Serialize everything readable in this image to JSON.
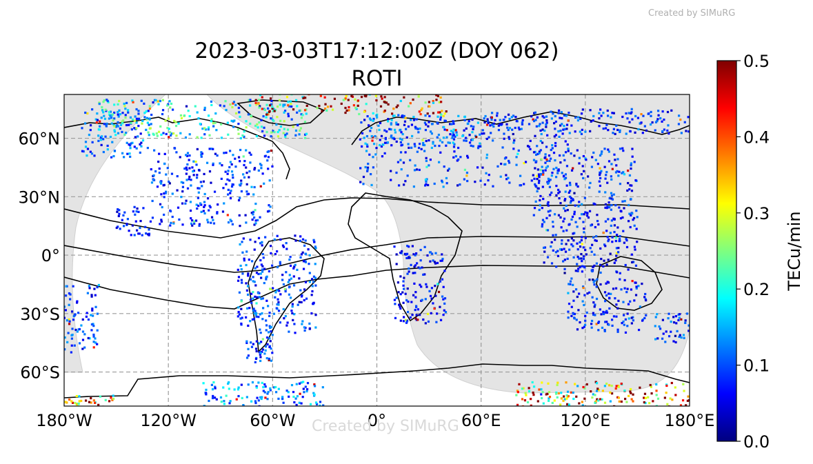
{
  "watermark_top": "Created by SIMuRG",
  "watermark_bottom": "Created by SIMuRG",
  "title_line1": "2023-03-03T17:12:00Z (DOY 062)",
  "title_line2": "ROTI",
  "map": {
    "projection": "plate-carree",
    "lon_range": [
      -180,
      180
    ],
    "lat_range": [
      -90,
      90
    ],
    "x_ticks": [
      {
        "value": -180,
        "label": "180°W"
      },
      {
        "value": -120,
        "label": "120°W"
      },
      {
        "value": -60,
        "label": "60°W"
      },
      {
        "value": 0,
        "label": "0°"
      },
      {
        "value": 60,
        "label": "60°E"
      },
      {
        "value": 120,
        "label": "120°E"
      },
      {
        "value": 180,
        "label": "180°E"
      }
    ],
    "y_ticks": [
      {
        "value": 60,
        "label": "60°N"
      },
      {
        "value": 30,
        "label": "30°N"
      },
      {
        "value": 0,
        "label": "0°"
      },
      {
        "value": -30,
        "label": "30°S"
      },
      {
        "value": -60,
        "label": "60°S"
      }
    ],
    "grid": true,
    "night_shading_color": "#e4e4e4",
    "coastline_color": "#000000",
    "marker": "small squares colored by ROTI value"
  },
  "colorbar": {
    "label": "TECu/min",
    "min": 0.0,
    "max": 0.5,
    "ticks": [
      {
        "value": 0.0,
        "label": "0.0"
      },
      {
        "value": 0.1,
        "label": "0.1"
      },
      {
        "value": 0.2,
        "label": "0.2"
      },
      {
        "value": 0.3,
        "label": "0.3"
      },
      {
        "value": 0.4,
        "label": "0.4"
      },
      {
        "value": 0.5,
        "label": "0.5"
      }
    ],
    "colormap": "jet",
    "colors": [
      "#00007f",
      "#0000ff",
      "#007fff",
      "#00ffff",
      "#7fff7f",
      "#ffff00",
      "#ff7f00",
      "#ff0000",
      "#7f0000"
    ]
  },
  "chart_data": {
    "type": "scatter",
    "xlabel": "",
    "ylabel": "",
    "xlim": [
      -180,
      180
    ],
    "ylim": [
      -90,
      90
    ],
    "value_range": [
      0,
      0.5
    ],
    "regions": [
      {
        "lon": [
          -170,
          -130
        ],
        "lat": [
          50,
          75
        ],
        "level": 0.12
      },
      {
        "lon": [
          -130,
          -60
        ],
        "lat": [
          15,
          55
        ],
        "level": 0.1
      },
      {
        "lon": [
          -160,
          -40
        ],
        "lat": [
          60,
          80
        ],
        "level": 0.2
      },
      {
        "lon": [
          -70,
          40
        ],
        "lat": [
          72,
          84
        ],
        "level": 0.45
      },
      {
        "lon": [
          -80,
          -35
        ],
        "lat": [
          -40,
          10
        ],
        "level": 0.1
      },
      {
        "lon": [
          -75,
          -60
        ],
        "lat": [
          -55,
          -40
        ],
        "level": 0.1
      },
      {
        "lon": [
          -10,
          110
        ],
        "lat": [
          35,
          70
        ],
        "level": 0.1
      },
      {
        "lon": [
          -10,
          60
        ],
        "lat": [
          55,
          72
        ],
        "level": 0.12
      },
      {
        "lon": [
          90,
          150
        ],
        "lat": [
          20,
          55
        ],
        "level": 0.09
      },
      {
        "lon": [
          95,
          150
        ],
        "lat": [
          -10,
          20
        ],
        "level": 0.08
      },
      {
        "lon": [
          110,
          155
        ],
        "lat": [
          -40,
          -12
        ],
        "level": 0.09
      },
      {
        "lon": [
          160,
          180
        ],
        "lat": [
          -45,
          -30
        ],
        "level": 0.1
      },
      {
        "lon": [
          10,
          40
        ],
        "lat": [
          -35,
          5
        ],
        "level": 0.08
      },
      {
        "lon": [
          -150,
          -130
        ],
        "lat": [
          10,
          25
        ],
        "level": 0.08
      },
      {
        "lon": [
          -100,
          -30
        ],
        "lat": [
          -85,
          -65
        ],
        "level": 0.15
      },
      {
        "lon": [
          80,
          180
        ],
        "lat": [
          -85,
          -65
        ],
        "level": 0.4
      },
      {
        "lon": [
          -180,
          -150
        ],
        "lat": [
          -80,
          -72
        ],
        "level": 0.45
      },
      {
        "lon": [
          -180,
          -160
        ],
        "lat": [
          -50,
          -15
        ],
        "level": 0.1
      },
      {
        "lon": [
          60,
          180
        ],
        "lat": [
          62,
          75
        ],
        "level": 0.1
      }
    ]
  }
}
